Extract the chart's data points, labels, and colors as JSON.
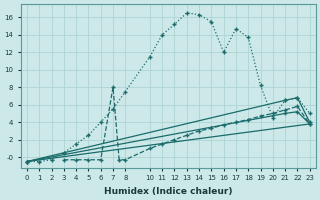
{
  "xlabel": "Humidex (Indice chaleur)",
  "bg_color": "#cde8e8",
  "line_color": "#1a6b6b",
  "grid_color": "#afd4d4",
  "xlim": [
    -0.5,
    23.5
  ],
  "ylim": [
    -1.2,
    17.5
  ],
  "xticks": [
    0,
    1,
    2,
    3,
    4,
    5,
    6,
    7,
    8,
    10,
    11,
    12,
    13,
    14,
    15,
    16,
    17,
    18,
    19,
    20,
    21,
    22,
    23
  ],
  "yticks": [
    0,
    2,
    4,
    6,
    8,
    10,
    12,
    14,
    16
  ],
  "ytick_labels": [
    "-0",
    "2",
    "4",
    "6",
    "8",
    "10",
    "12",
    "14",
    "16"
  ],
  "curve_dotted_x": [
    0,
    1,
    2,
    3,
    4,
    5,
    6,
    7,
    8,
    10,
    11,
    12,
    13,
    14,
    15,
    16,
    17,
    18,
    19,
    20,
    21,
    22,
    23
  ],
  "curve_dotted_y": [
    -0.5,
    -0.5,
    -0.3,
    0.5,
    1.5,
    2.5,
    4.0,
    5.5,
    7.5,
    11.5,
    14.0,
    15.2,
    16.5,
    16.3,
    15.5,
    12.0,
    14.7,
    13.7,
    8.2,
    4.5,
    6.5,
    6.8,
    5.0
  ],
  "curve_dashed_x": [
    3,
    4,
    5,
    6,
    7,
    7.5,
    8,
    10,
    11,
    12,
    13,
    14,
    15,
    16,
    17,
    18,
    19,
    20,
    21,
    22,
    23
  ],
  "curve_dashed_y": [
    -0.3,
    -0.3,
    -0.3,
    -0.3,
    8.0,
    -0.3,
    -0.3,
    1.0,
    1.5,
    2.0,
    2.5,
    3.0,
    3.3,
    3.7,
    4.0,
    4.3,
    4.7,
    5.0,
    5.4,
    5.8,
    3.8
  ],
  "curve_line1_x": [
    0,
    21,
    22,
    23
  ],
  "curve_line1_y": [
    -0.5,
    6.5,
    6.8,
    4.0
  ],
  "curve_line2_x": [
    0,
    23
  ],
  "curve_line2_y": [
    -0.5,
    3.8
  ],
  "curve_line3_x": [
    0,
    21,
    22,
    23
  ],
  "curve_line3_y": [
    -0.5,
    5.0,
    5.2,
    3.8
  ]
}
